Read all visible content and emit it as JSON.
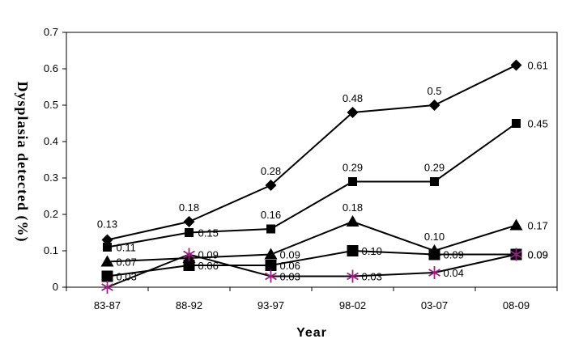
{
  "chart_data": {
    "type": "line",
    "xlabel": "Year",
    "ylabel": "Dysplasia detected (%)",
    "categories": [
      "83-87",
      "88-92",
      "93-97",
      "98-02",
      "03-07",
      "08-09"
    ],
    "ylim": [
      0,
      0.7
    ],
    "yticks": [
      "0",
      "0.1",
      "0.2",
      "0.3",
      "0.4",
      "0.5",
      "0.6",
      "0.7"
    ],
    "grid": false,
    "legend": "none",
    "series": [
      {
        "marker": "diamond",
        "values": [
          0.13,
          0.18,
          0.28,
          0.48,
          0.5,
          0.61
        ],
        "labels": [
          "0.13",
          "0.18",
          "0.28",
          "0.48",
          "0.5",
          "0.61"
        ],
        "color": "#000000"
      },
      {
        "marker": "square",
        "values": [
          0.11,
          0.15,
          0.16,
          0.29,
          0.29,
          0.45
        ],
        "labels": [
          "0.11",
          "0.15",
          "0.16",
          "0.29",
          "0.29",
          "0.45"
        ],
        "color": "#000000"
      },
      {
        "marker": "triangle",
        "values": [
          0.07,
          0.08,
          0.09,
          0.18,
          0.1,
          0.17
        ],
        "labels": [
          "0.07",
          "",
          "0.09",
          "0.18",
          "0.10",
          "0.17"
        ],
        "color": "#000000"
      },
      {
        "marker": "square-large",
        "values": [
          0.03,
          0.06,
          0.06,
          0.1,
          0.09,
          0.09
        ],
        "labels": [
          "0.03",
          "0.06",
          "0.06",
          "0.10",
          "0.09",
          "0.09"
        ],
        "color": "#000000"
      },
      {
        "marker": "star",
        "values": [
          0.0,
          0.09,
          0.03,
          0.03,
          0.04,
          0.09
        ],
        "labels": [
          "",
          "0.09",
          "0.03",
          "0.03",
          "0.04",
          "0.09"
        ],
        "color": "#99207f"
      }
    ]
  }
}
